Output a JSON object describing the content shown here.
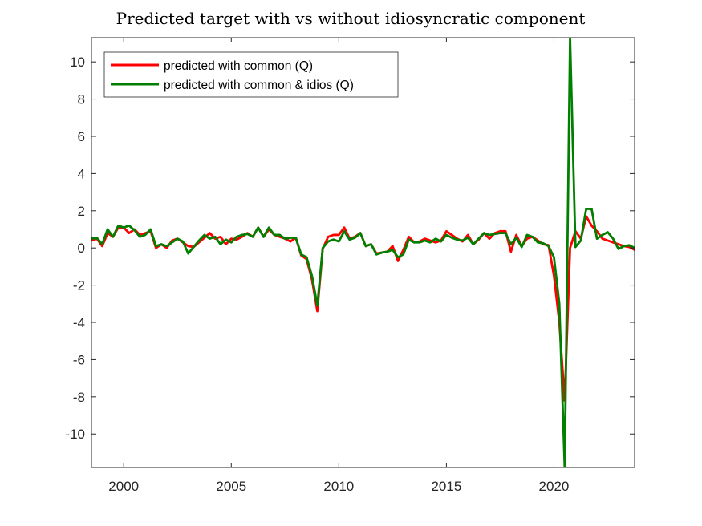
{
  "chart_data": {
    "type": "line",
    "title": "Predicted target with vs without idiosyncratic component",
    "xlabel": "",
    "ylabel": "",
    "xlim": [
      1998.5,
      2023.75
    ],
    "ylim": [
      -11.8,
      11.3
    ],
    "x_ticks": [
      2000,
      2005,
      2010,
      2015,
      2020
    ],
    "x_tick_labels": [
      "2000",
      "2005",
      "2010",
      "2015",
      "2020"
    ],
    "y_ticks": [
      10,
      8,
      6,
      4,
      2,
      0,
      -2,
      -4,
      -6,
      -8,
      -10
    ],
    "y_tick_labels": [
      "10",
      "8",
      "6",
      "4",
      "2",
      "0",
      "-2",
      "-4",
      "-6",
      "-8",
      "-10"
    ],
    "grid": false,
    "legend_position": "top-left",
    "x_start": 1998.5,
    "x_step": 0.25,
    "series": [
      {
        "name": "predicted with common (Q)",
        "color": "#ff0000",
        "values": [
          0.4,
          0.5,
          0.1,
          0.8,
          0.6,
          1.1,
          1.1,
          0.8,
          1.0,
          0.7,
          0.8,
          0.9,
          0.0,
          0.2,
          0.0,
          0.4,
          0.5,
          0.3,
          0.1,
          0.05,
          0.3,
          0.55,
          0.8,
          0.5,
          0.6,
          0.2,
          0.5,
          0.45,
          0.6,
          0.8,
          0.6,
          1.1,
          0.6,
          1.0,
          0.7,
          0.6,
          0.5,
          0.35,
          0.55,
          -0.4,
          -0.6,
          -1.7,
          -3.4,
          -0.05,
          0.6,
          0.7,
          0.7,
          1.1,
          0.5,
          0.6,
          0.8,
          0.1,
          0.2,
          -0.3,
          -0.25,
          -0.2,
          0.1,
          -0.7,
          -0.1,
          0.6,
          0.3,
          0.35,
          0.5,
          0.4,
          0.3,
          0.4,
          0.9,
          0.7,
          0.5,
          0.35,
          0.7,
          0.2,
          0.45,
          0.8,
          0.5,
          0.8,
          0.9,
          0.9,
          -0.2,
          0.7,
          0.1,
          0.5,
          0.6,
          0.4,
          0.2,
          0.15,
          -1.5,
          -4.0,
          -8.2,
          0.0,
          0.9,
          0.5,
          1.7,
          1.2,
          0.9,
          0.5,
          0.4,
          0.3,
          0.2,
          0.1,
          0.05,
          -0.1,
          -0.6
        ]
      },
      {
        "name": "predicted with common & idios (Q)",
        "color": "#007f00",
        "values": [
          0.5,
          0.55,
          0.2,
          1.0,
          0.6,
          1.2,
          1.1,
          1.2,
          0.95,
          0.6,
          0.7,
          1.0,
          0.1,
          0.2,
          0.1,
          0.3,
          0.5,
          0.35,
          -0.3,
          0.05,
          0.4,
          0.7,
          0.5,
          0.6,
          0.2,
          0.45,
          0.3,
          0.6,
          0.7,
          0.75,
          0.6,
          1.1,
          0.6,
          1.1,
          0.7,
          0.7,
          0.5,
          0.55,
          0.55,
          -0.35,
          -0.5,
          -1.5,
          -3.1,
          0.0,
          0.35,
          0.45,
          0.35,
          0.9,
          0.45,
          0.55,
          0.8,
          0.1,
          0.2,
          -0.35,
          -0.25,
          -0.2,
          -0.1,
          -0.5,
          -0.35,
          0.45,
          0.3,
          0.3,
          0.4,
          0.3,
          0.5,
          0.35,
          0.7,
          0.55,
          0.45,
          0.4,
          0.55,
          0.2,
          0.5,
          0.8,
          0.7,
          0.75,
          0.8,
          0.8,
          0.2,
          0.55,
          0.05,
          0.7,
          0.6,
          0.3,
          0.25,
          0.1,
          -0.5,
          -3.0,
          -11.8,
          11.3,
          0.05,
          0.4,
          2.1,
          2.1,
          0.5,
          0.7,
          0.85,
          0.5,
          -0.05,
          0.1,
          0.15,
          0.0
        ]
      }
    ]
  }
}
